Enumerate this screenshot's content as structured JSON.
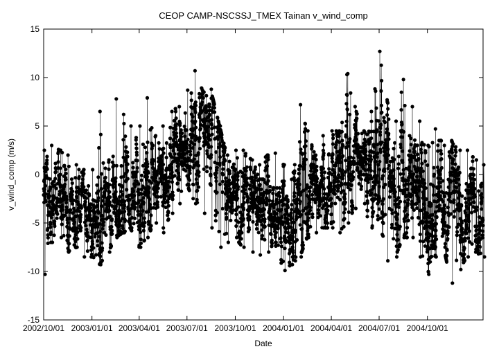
{
  "chart_data": {
    "type": "line",
    "title": "CEOP CAMP-NSCSSJ_TMEX Tainan  v_wind_comp",
    "xlabel": "Date",
    "ylabel": "v_wind_comp (m/s)",
    "ylim": [
      -15,
      15
    ],
    "xlim": [
      "2002-10-01",
      "2005-01-15"
    ],
    "grid": false,
    "legend": "none",
    "marker": "filled-circle",
    "line_color": "#000000",
    "y_ticks": [
      {
        "value": 15,
        "label": "15"
      },
      {
        "value": 10,
        "label": "10"
      },
      {
        "value": 5,
        "label": "5"
      },
      {
        "value": 0,
        "label": "0"
      },
      {
        "value": -5,
        "label": "-5"
      },
      {
        "value": -10,
        "label": "-10"
      },
      {
        "value": -15,
        "label": "-15"
      }
    ],
    "x_ticks": [
      {
        "value": "2002-10-01",
        "label": "2002/10/01"
      },
      {
        "value": "2003-01-01",
        "label": "2003/01/01"
      },
      {
        "value": "2003-04-01",
        "label": "2003/04/01"
      },
      {
        "value": "2003-07-01",
        "label": "2003/07/01"
      },
      {
        "value": "2003-10-01",
        "label": "2003/10/01"
      },
      {
        "value": "2004-01-01",
        "label": "2004/01/01"
      },
      {
        "value": "2004-04-01",
        "label": "2004/04/01"
      },
      {
        "value": "2004-07-01",
        "label": "2004/07/01"
      },
      {
        "value": "2004-10-01",
        "label": "2004/10/01"
      }
    ],
    "series": [
      {
        "x": [
          "2002-10-01",
          "2002-10-15",
          "2002-11-01",
          "2002-11-15",
          "2002-12-01",
          "2002-12-15",
          "2003-01-01",
          "2003-01-15",
          "2003-02-01",
          "2003-02-15",
          "2003-03-01",
          "2003-03-15",
          "2003-04-01",
          "2003-04-15",
          "2003-05-01",
          "2003-05-15",
          "2003-06-01",
          "2003-06-15",
          "2003-07-01",
          "2003-07-15",
          "2003-08-01",
          "2003-08-15",
          "2003-09-01",
          "2003-09-15",
          "2003-10-01",
          "2003-10-15",
          "2003-11-01",
          "2003-11-15",
          "2003-12-01",
          "2003-12-15",
          "2004-01-01",
          "2004-01-15",
          "2004-02-01",
          "2004-02-15",
          "2004-03-01",
          "2004-03-15",
          "2004-04-01",
          "2004-04-15",
          "2004-05-01",
          "2004-05-15",
          "2004-06-01",
          "2004-06-15",
          "2004-07-01",
          "2004-07-15",
          "2004-08-01",
          "2004-08-15",
          "2004-09-01",
          "2004-09-15",
          "2004-10-01",
          "2004-10-15",
          "2004-11-01",
          "2004-11-15",
          "2004-12-01",
          "2004-12-15",
          "2005-01-01",
          "2005-01-15"
        ],
        "y_max": [
          2.5,
          3.0,
          2.5,
          2.0,
          1.0,
          0.5,
          0.5,
          6.5,
          1.5,
          7.8,
          6.2,
          5.0,
          5.0,
          7.9,
          4.0,
          5.0,
          6.5,
          7.0,
          8.7,
          10.7,
          8.5,
          8.8,
          5.0,
          2.0,
          2.5,
          2.5,
          1.5,
          1.0,
          2.0,
          2.2,
          1.0,
          -0.5,
          7.2,
          4.5,
          2.0,
          4.0,
          4.5,
          4.5,
          10.4,
          7.0,
          4.5,
          6.5,
          12.7,
          7.7,
          5.5,
          9.8,
          7.0,
          5.5,
          3.0,
          4.7,
          3.0,
          3.5,
          2.5,
          2.5,
          1.5,
          1.0
        ],
        "y_min": [
          -10.3,
          -7.0,
          -6.5,
          -8.0,
          -7.5,
          -8.5,
          -8.5,
          -9.3,
          -8.0,
          -6.5,
          -6.0,
          -5.5,
          -7.5,
          -6.5,
          -5.0,
          -6.0,
          -4.0,
          -3.0,
          -1.0,
          -3.0,
          -4.0,
          -5.5,
          -7.5,
          -7.0,
          -6.5,
          -7.5,
          -8.0,
          -8.3,
          -8.0,
          -7.0,
          -9.9,
          -9.3,
          -8.5,
          -6.5,
          -6.0,
          -5.5,
          -5.5,
          -6.0,
          -5.0,
          -3.5,
          -3.0,
          -5.5,
          -4.5,
          -8.9,
          -8.5,
          -6.5,
          -6.5,
          -8.5,
          -10.3,
          -8.5,
          -7.5,
          -11.2,
          -9.8,
          -8.5,
          -8.0,
          -8.5
        ],
        "y_mean": [
          -3.0,
          -2.5,
          -2.8,
          -3.0,
          -3.5,
          -3.5,
          -3.8,
          -3.0,
          -3.5,
          -2.5,
          -2.0,
          -2.0,
          -2.0,
          -1.5,
          -1.0,
          0.0,
          1.0,
          2.0,
          3.0,
          3.5,
          2.5,
          2.0,
          0.0,
          -1.0,
          -2.0,
          -2.5,
          -3.5,
          -3.0,
          -3.5,
          -3.5,
          -4.0,
          -4.5,
          -3.0,
          -2.5,
          -2.0,
          -1.5,
          -1.0,
          0.0,
          1.0,
          1.5,
          1.0,
          1.5,
          2.5,
          1.0,
          -0.5,
          -1.0,
          -1.5,
          -2.0,
          -2.5,
          -3.0,
          -3.0,
          -3.5,
          -3.0,
          -3.0,
          -3.5,
          -3.5
        ]
      }
    ]
  }
}
